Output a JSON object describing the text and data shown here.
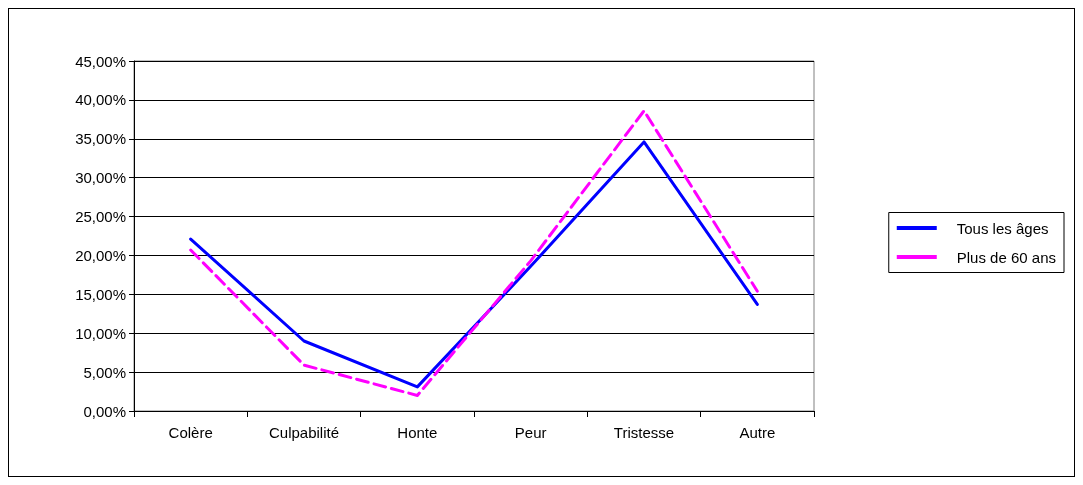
{
  "chart_data": {
    "type": "line",
    "categories": [
      "Colère",
      "Culpabilité",
      "Honte",
      "Peur",
      "Tristesse",
      "Autre"
    ],
    "series": [
      {
        "name": "Tous les âges",
        "color": "#0000ff",
        "line_style": "solid",
        "values": [
          22.1,
          9.0,
          3.1,
          18.6,
          34.6,
          13.7
        ]
      },
      {
        "name": "Plus de 60 ans",
        "color": "#ff00ff",
        "line_style": "dashed",
        "values": [
          20.7,
          5.9,
          2.0,
          19.3,
          38.6,
          15.4
        ]
      }
    ],
    "ylim": [
      0,
      45
    ],
    "yticks": [
      {
        "value": 0,
        "label": "0,00%"
      },
      {
        "value": 5,
        "label": "5,00%"
      },
      {
        "value": 10,
        "label": "10,00%"
      },
      {
        "value": 15,
        "label": "15,00%"
      },
      {
        "value": 20,
        "label": "20,00%"
      },
      {
        "value": 25,
        "label": "25,00%"
      },
      {
        "value": 30,
        "label": "30,00%"
      },
      {
        "value": 35,
        "label": "35,00%"
      },
      {
        "value": 40,
        "label": "40,00%"
      },
      {
        "value": 45,
        "label": "45,00%"
      }
    ],
    "grid": "y",
    "legend": "right",
    "marker": "none"
  }
}
